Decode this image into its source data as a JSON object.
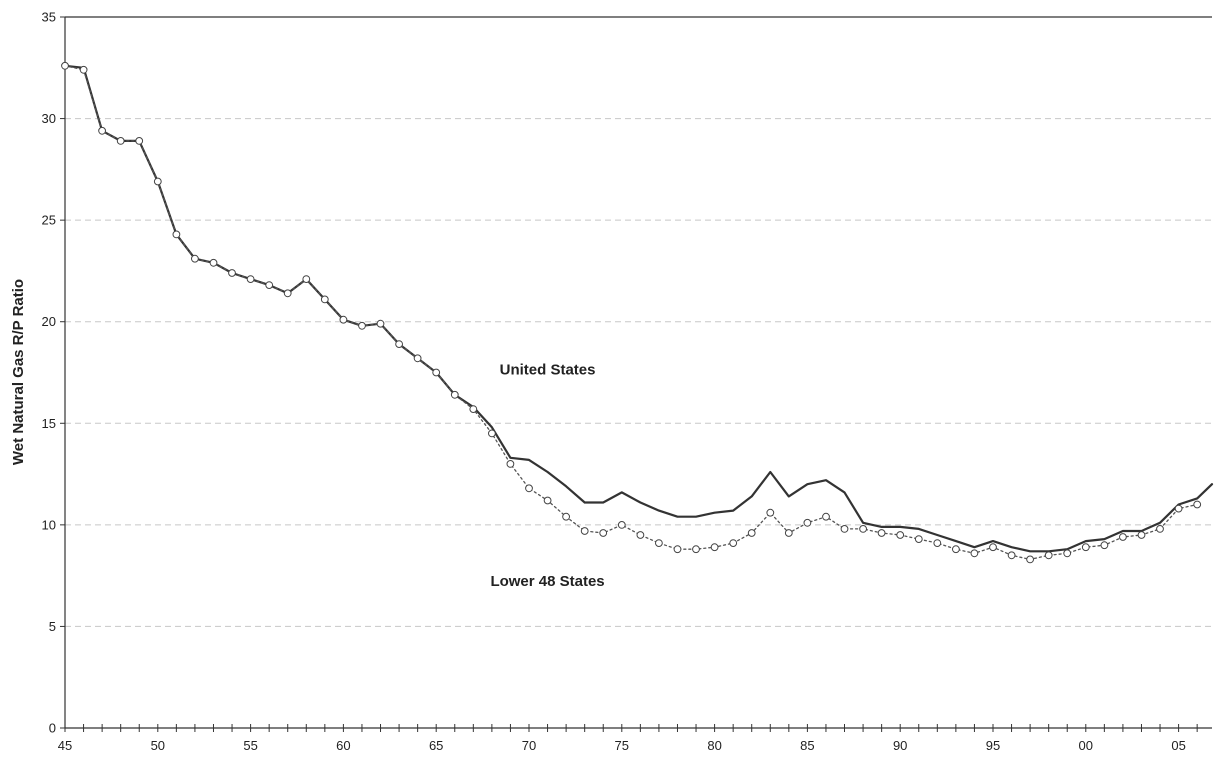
{
  "chart_data": {
    "type": "line",
    "title": "",
    "xlabel": "",
    "ylabel": "Wet Natural Gas R/P Ratio",
    "xlim": [
      1945,
      2006.8
    ],
    "ylim": [
      0,
      35
    ],
    "y_ticks": [
      0,
      5,
      10,
      15,
      20,
      25,
      30,
      35
    ],
    "x_tick_years": [
      1945,
      1950,
      1955,
      1960,
      1965,
      1970,
      1975,
      1980,
      1985,
      1990,
      1995,
      2000,
      2005
    ],
    "x_tick_labels": [
      "45",
      "50",
      "55",
      "60",
      "65",
      "70",
      "75",
      "80",
      "85",
      "90",
      "95",
      "00",
      "05"
    ],
    "grid": "horizontal dashed",
    "legend": "none",
    "annotations": [
      {
        "text": "United States",
        "x": 1971,
        "y": 17.4
      },
      {
        "text": "Lower 48 States",
        "x": 1971,
        "y": 7.0
      }
    ],
    "series": [
      {
        "name": "United States",
        "style": "solid",
        "color": "#333333",
        "x": [
          1945,
          1946,
          1947,
          1948,
          1949,
          1950,
          1951,
          1952,
          1953,
          1954,
          1955,
          1956,
          1957,
          1958,
          1959,
          1960,
          1961,
          1962,
          1963,
          1964,
          1965,
          1966,
          1967,
          1968,
          1969,
          1970,
          1971,
          1972,
          1973,
          1974,
          1975,
          1976,
          1977,
          1978,
          1979,
          1980,
          1981,
          1982,
          1983,
          1984,
          1985,
          1986,
          1987,
          1988,
          1989,
          1990,
          1991,
          1992,
          1993,
          1994,
          1995,
          1996,
          1997,
          1998,
          1999,
          2000,
          2001,
          2002,
          2003,
          2004,
          2005,
          2006,
          2006.8
        ],
        "values": [
          32.6,
          32.5,
          29.4,
          28.9,
          28.9,
          26.9,
          24.3,
          23.1,
          22.9,
          22.4,
          22.1,
          21.8,
          21.4,
          22.1,
          21.1,
          20.1,
          19.8,
          19.9,
          18.9,
          18.2,
          17.5,
          16.4,
          15.8,
          14.8,
          13.3,
          13.2,
          12.6,
          11.9,
          11.1,
          11.1,
          11.6,
          11.1,
          10.7,
          10.4,
          10.4,
          10.6,
          10.7,
          11.4,
          12.6,
          11.4,
          12.0,
          12.2,
          11.6,
          10.1,
          9.9,
          9.9,
          9.8,
          9.5,
          9.2,
          8.9,
          9.2,
          8.9,
          8.7,
          8.7,
          8.8,
          9.2,
          9.3,
          9.7,
          9.7,
          10.1,
          11.0,
          11.3,
          12.0
        ]
      },
      {
        "name": "Lower 48 States",
        "style": "dotted",
        "color": "#555555",
        "x": [
          1945,
          1946,
          1947,
          1948,
          1949,
          1950,
          1951,
          1952,
          1953,
          1954,
          1955,
          1956,
          1957,
          1958,
          1959,
          1960,
          1961,
          1962,
          1963,
          1964,
          1965,
          1966,
          1967,
          1968,
          1969,
          1970,
          1971,
          1972,
          1973,
          1974,
          1975,
          1976,
          1977,
          1978,
          1979,
          1980,
          1981,
          1982,
          1983,
          1984,
          1985,
          1986,
          1987,
          1988,
          1989,
          1990,
          1991,
          1992,
          1993,
          1994,
          1995,
          1996,
          1997,
          1998,
          1999,
          2000,
          2001,
          2002,
          2003,
          2004,
          2005,
          2006
        ],
        "values": [
          32.6,
          32.4,
          29.4,
          28.9,
          28.9,
          26.9,
          24.3,
          23.1,
          22.9,
          22.4,
          22.1,
          21.8,
          21.4,
          22.1,
          21.1,
          20.1,
          19.8,
          19.9,
          18.9,
          18.2,
          17.5,
          16.4,
          15.7,
          14.5,
          13.0,
          11.8,
          11.2,
          10.4,
          9.7,
          9.6,
          10.0,
          9.5,
          9.1,
          8.8,
          8.8,
          8.9,
          9.1,
          9.6,
          10.6,
          9.6,
          10.1,
          10.4,
          9.8,
          9.8,
          9.6,
          9.5,
          9.3,
          9.1,
          8.8,
          8.6,
          8.9,
          8.5,
          8.3,
          8.5,
          8.6,
          8.9,
          9.0,
          9.4,
          9.5,
          9.8,
          10.8,
          11.0
        ]
      }
    ]
  }
}
